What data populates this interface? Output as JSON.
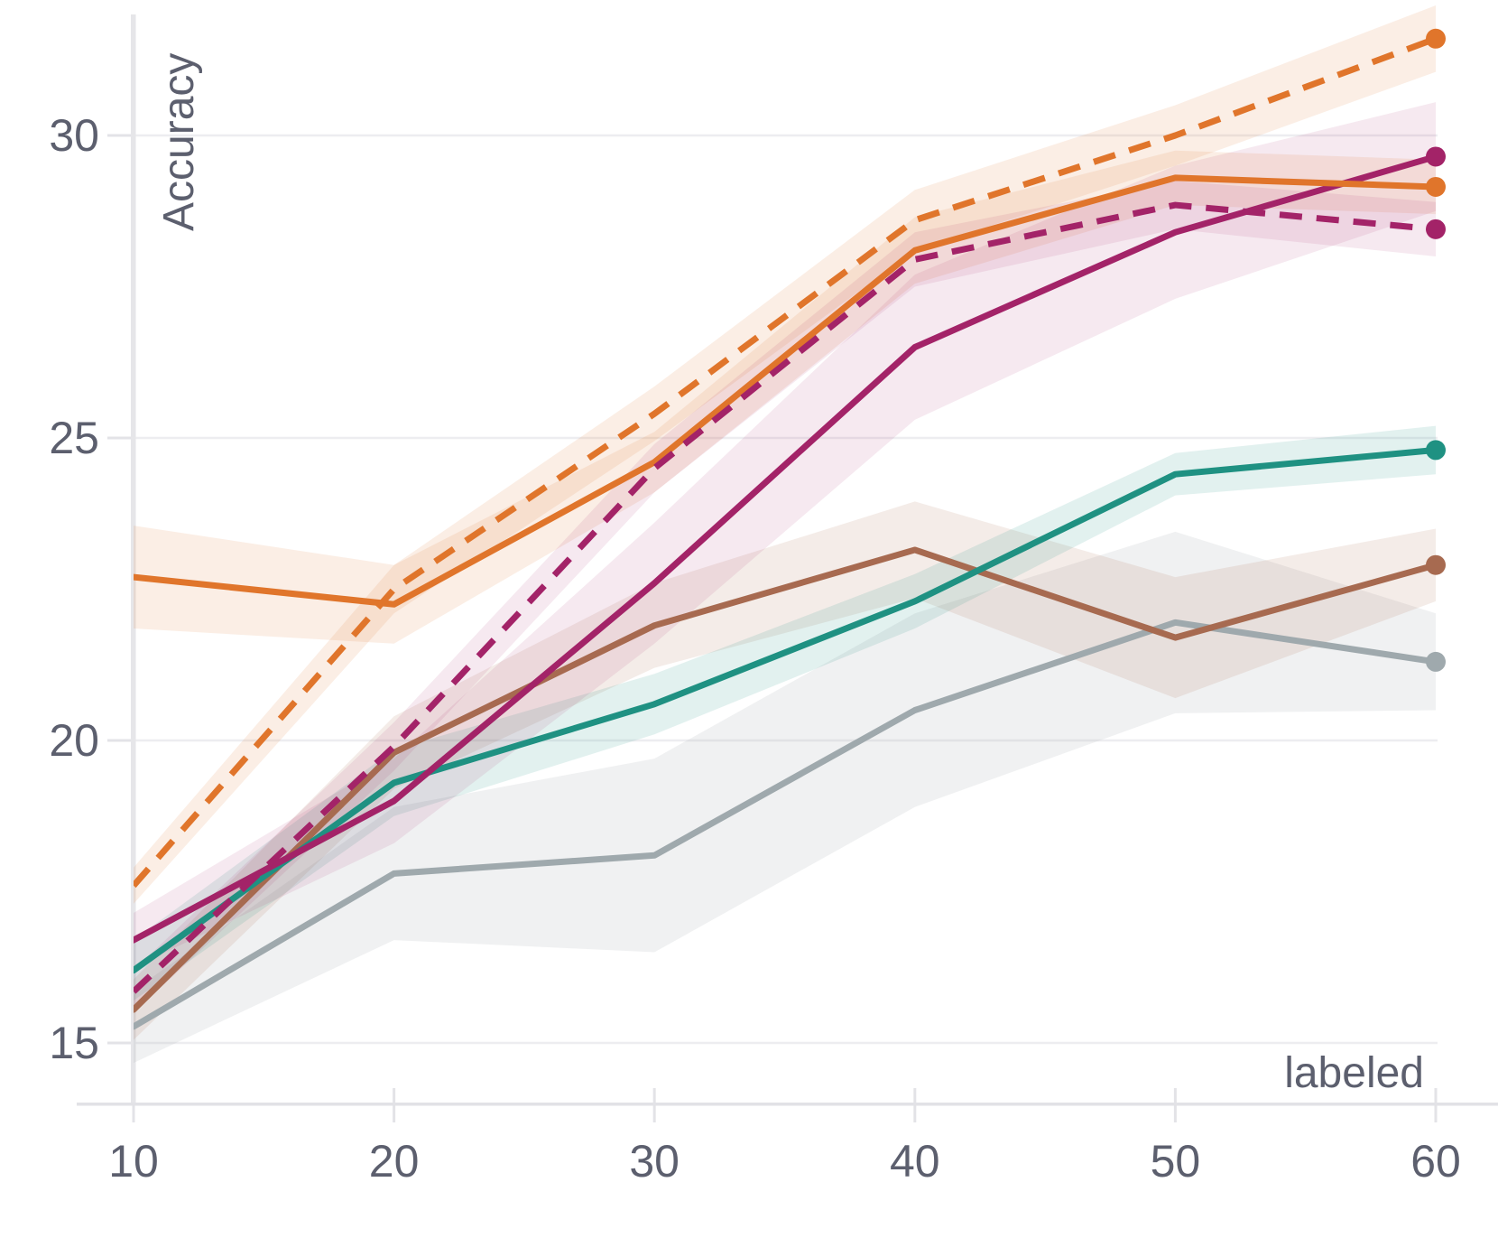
{
  "chart_data": {
    "type": "line",
    "title": "",
    "xlabel": "labeled",
    "ylabel": "Accuracy",
    "x": [
      10,
      20,
      30,
      40,
      50,
      60
    ],
    "x_ticks": [
      10,
      20,
      30,
      40,
      50,
      60
    ],
    "y_ticks": [
      15,
      20,
      25,
      30
    ],
    "xlim": [
      10,
      60.3
    ],
    "ylim": [
      14.0,
      32.2
    ],
    "grid": "horizontal",
    "legend": "none",
    "marker_at_last_point": true,
    "series": [
      {
        "name": "gray-solid",
        "style": "solid",
        "color": "#9FA9AD",
        "band_opacity": 0.16,
        "values": [
          15.27,
          17.8,
          18.1,
          20.5,
          21.95,
          21.3
        ],
        "band": [
          0.6,
          1.1,
          1.6,
          1.6,
          1.5,
          0.8
        ]
      },
      {
        "name": "brown-solid",
        "style": "solid",
        "color": "#A76A50",
        "band_opacity": 0.13,
        "values": [
          15.55,
          19.8,
          21.9,
          23.15,
          21.7,
          22.9
        ],
        "band": [
          0.5,
          0.6,
          0.7,
          0.8,
          1.0,
          0.6
        ]
      },
      {
        "name": "teal-solid",
        "style": "solid",
        "color": "#1F9182",
        "band_opacity": 0.13,
        "values": [
          16.2,
          19.3,
          20.6,
          22.3,
          24.4,
          24.8
        ],
        "band": [
          0.5,
          0.55,
          0.5,
          0.45,
          0.35,
          0.4
        ]
      },
      {
        "name": "magenta-solid",
        "style": "solid",
        "color": "#A32368",
        "band_opacity": 0.1,
        "values": [
          16.7,
          19.0,
          22.6,
          26.5,
          28.4,
          29.65
        ],
        "band": [
          0.45,
          0.7,
          1.0,
          1.2,
          1.1,
          0.9
        ]
      },
      {
        "name": "orange-solid",
        "style": "solid",
        "color": "#E0752B",
        "band_opacity": 0.12,
        "values": [
          22.7,
          22.25,
          24.6,
          28.1,
          29.3,
          29.15
        ],
        "band": [
          0.85,
          0.65,
          0.5,
          0.55,
          0.45,
          0.45
        ]
      },
      {
        "name": "magenta-dashed",
        "style": "dashed",
        "color": "#A32368",
        "band_opacity": 0.1,
        "values": [
          15.85,
          19.9,
          24.5,
          27.95,
          28.85,
          28.45
        ],
        "band": [
          0.35,
          0.4,
          0.4,
          0.45,
          0.4,
          0.45
        ]
      },
      {
        "name": "orange-dashed",
        "style": "dashed",
        "color": "#E0752B",
        "band_opacity": 0.12,
        "values": [
          17.6,
          22.5,
          25.4,
          28.6,
          30.0,
          31.6
        ],
        "band": [
          0.3,
          0.4,
          0.45,
          0.5,
          0.5,
          0.55
        ]
      }
    ]
  }
}
